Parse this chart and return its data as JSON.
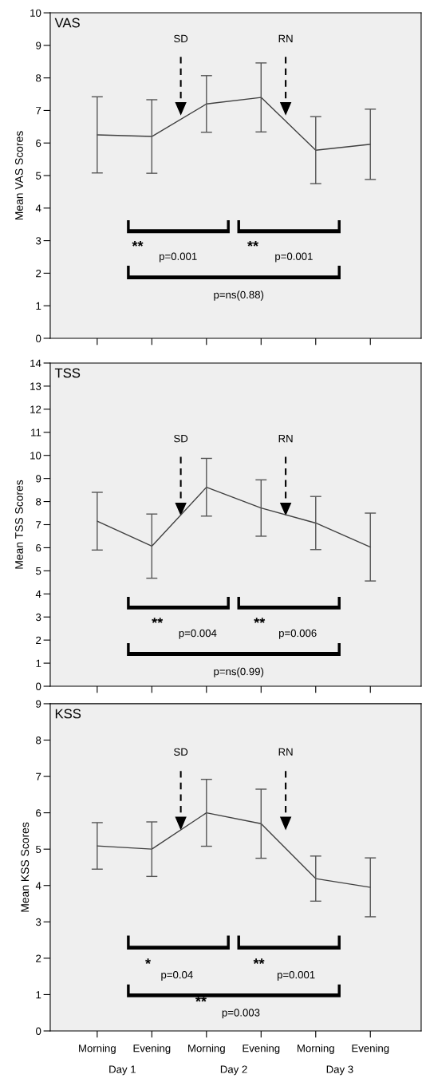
{
  "chart_data": [
    {
      "type": "line",
      "title": "VAS",
      "ylabel": "Mean VAS Scores",
      "categories": [
        null,
        null,
        null,
        null,
        null,
        null
      ],
      "series": [
        {
          "color": "#404040",
          "values": [
            6.25,
            6.2,
            7.2,
            7.4,
            5.78,
            5.96
          ],
          "errors": [
            1.17,
            1.13,
            0.87,
            1.06,
            1.03,
            1.08
          ]
        }
      ],
      "ylim": [
        0,
        10
      ],
      "yticks": [
        0,
        1,
        2,
        3,
        4,
        5,
        6,
        7,
        8,
        9,
        10
      ],
      "tick_labels": "y",
      "grid": false,
      "legend": false,
      "marker": "none",
      "line_style": "solid",
      "annotations": [
        "SD",
        "RN",
        "**",
        "p=0.001",
        "**",
        "p=0.001",
        "p=ns(0.88)"
      ]
    },
    {
      "type": "line",
      "title": "TSS",
      "ylabel": "Mean TSS Scores",
      "categories": [
        null,
        null,
        null,
        null,
        null,
        null
      ],
      "series": [
        {
          "color": "#404040",
          "values": [
            7.15,
            6.07,
            8.62,
            7.72,
            7.07,
            6.03
          ],
          "errors": [
            1.25,
            1.39,
            1.25,
            1.22,
            1.15,
            1.47
          ]
        }
      ],
      "ylim": [
        0,
        14
      ],
      "yticks": [
        0,
        1,
        2,
        3,
        4,
        5,
        6,
        7,
        8,
        9,
        10,
        11,
        12,
        13,
        14
      ],
      "tick_labels": "y",
      "grid": false,
      "legend": false,
      "marker": "none",
      "line_style": "solid",
      "annotations": [
        "SD",
        "RN",
        "**",
        "p=0.004",
        "**",
        "p=0.006",
        "p=ns(0.99)"
      ]
    },
    {
      "type": "line",
      "title": "KSS",
      "ylabel": "Mean KSS Scores",
      "categories": [
        "Morning",
        "Evening",
        "Morning",
        "Evening",
        "Morning",
        "Evening"
      ],
      "series": [
        {
          "color": "#404040",
          "values": [
            5.09,
            5.0,
            6.0,
            5.7,
            4.19,
            3.95
          ],
          "errors": [
            0.64,
            0.75,
            0.92,
            0.95,
            0.62,
            0.81
          ]
        }
      ],
      "ylim": [
        0,
        9
      ],
      "yticks": [
        0,
        1,
        2,
        3,
        4,
        5,
        6,
        7,
        8,
        9
      ],
      "grid": false,
      "legend": false,
      "marker": "none",
      "line_style": "solid",
      "annotations": [
        "SD",
        "RN",
        "*",
        "p=0.04",
        "**",
        "p=0.001",
        "**",
        "p=0.003",
        "Day 1",
        "Day 2",
        "Day 3"
      ]
    }
  ]
}
